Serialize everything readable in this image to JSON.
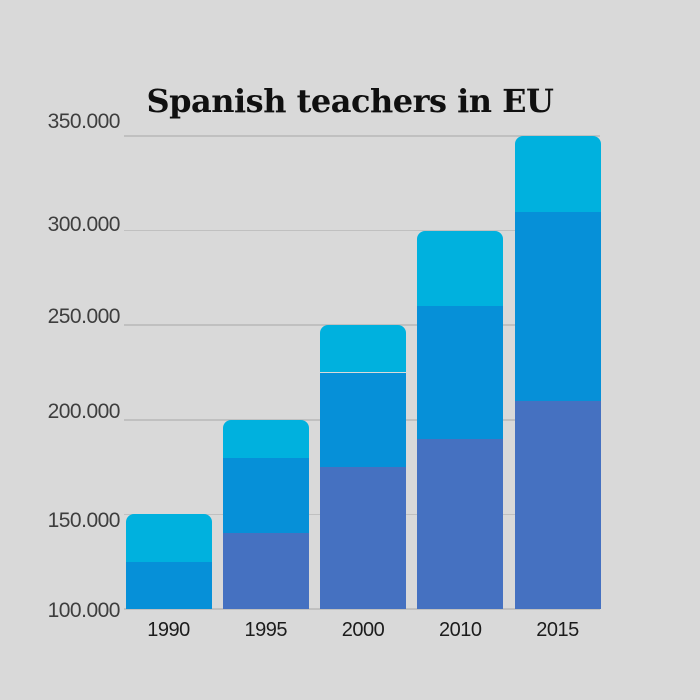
{
  "chart_data": {
    "type": "bar",
    "stacked": true,
    "title": "Spanish teachers in EU",
    "categories": [
      "1990",
      "1995",
      "2000",
      "2010",
      "2015"
    ],
    "series": [
      {
        "name": "bottom-segment",
        "color": "#4571c1",
        "cumulative_tops": [
          100000,
          140000,
          175000,
          190000,
          210000
        ]
      },
      {
        "name": "middle-segment",
        "color": "#0690d8",
        "cumulative_tops": [
          125000,
          180000,
          225000,
          260000,
          310000
        ]
      },
      {
        "name": "top-segment",
        "color": "#00b1de",
        "cumulative_tops": [
          150000,
          200000,
          250000,
          300000,
          350000
        ]
      }
    ],
    "totals": [
      150000,
      200000,
      250000,
      300000,
      350000
    ],
    "y_axis": {
      "min": 100000,
      "max": 350000,
      "tick_step": 50000,
      "tick_labels": [
        "350.000",
        "300.000",
        "250.000",
        "200.000",
        "150.000",
        "100.000"
      ]
    },
    "x_axis": {
      "tick_labels": [
        "1990",
        "1995",
        "2000",
        "2010",
        "2015"
      ]
    },
    "legend": "none",
    "grid": "horizontal",
    "note": "Axis starts at 100.000; the 1990 bottom segment is clipped below the axis minimum, so only its middle and top segments are visible."
  },
  "colors": {
    "background": "#d9d9d9",
    "gridline": "#c0c0c0",
    "title_text": "#101010",
    "y_label_text": "#3e3e3e",
    "x_label_text": "#1c1c1c"
  }
}
